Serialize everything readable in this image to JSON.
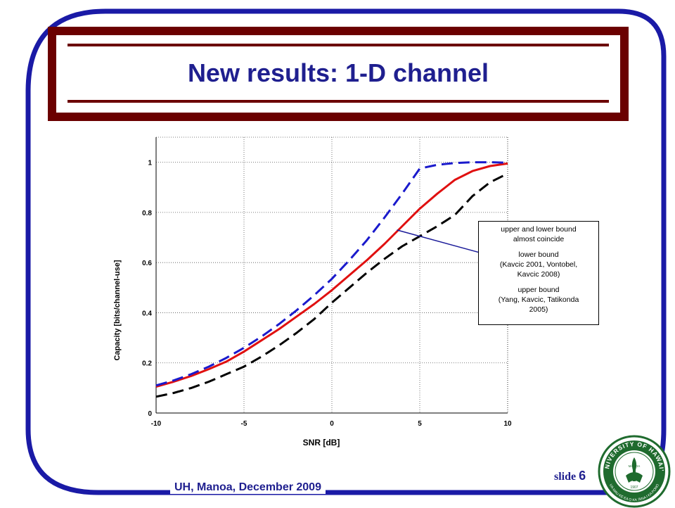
{
  "slide": {
    "title": "New results: 1-D channel",
    "footer": "UH, Manoa, December 2009",
    "slide_label": "slide",
    "slide_number": "6",
    "frame_color": "#1a1aa6",
    "band_color": "#6b0000"
  },
  "annotation": {
    "lines": [
      [
        "upper and lower bound",
        "almost coincide"
      ],
      [
        "lower bound",
        "(Kavcic 2001, Vontobel,",
        "Kavcic 2008)"
      ],
      [
        "upper bound",
        "(Yang, Kavcic, Tatikonda",
        "2005)"
      ]
    ]
  },
  "seal": {
    "text_top": "UNIVERSITY OF HAWAI'I",
    "text_inner": "MĀNOA",
    "year": "1907",
    "color": "#1f6b2e"
  },
  "chart_data": {
    "type": "line",
    "xlabel": "SNR [dB]",
    "ylabel": "Capacity [bits/channel-use]",
    "xlim": [
      -10,
      10
    ],
    "ylim": [
      0,
      1.1
    ],
    "xticks": [
      "-10",
      "-5",
      "0",
      "5",
      "10"
    ],
    "yticks": [
      "0",
      "0.2",
      "0.4",
      "0.6",
      "0.8",
      "1"
    ],
    "grid": true,
    "series": [
      {
        "color": "#e01010",
        "dash": "solid",
        "x": [
          -10,
          -9,
          -8,
          -7,
          -6,
          -5,
          -4,
          -3,
          -2,
          -1,
          0,
          1,
          2,
          3,
          4,
          5,
          6,
          7,
          8,
          9,
          10
        ],
        "y": [
          0.105,
          0.125,
          0.148,
          0.175,
          0.205,
          0.245,
          0.29,
          0.335,
          0.385,
          0.435,
          0.49,
          0.55,
          0.61,
          0.675,
          0.745,
          0.815,
          0.875,
          0.93,
          0.965,
          0.985,
          0.995
        ]
      },
      {
        "color": "#1a1acc",
        "dash": "dashed",
        "x": [
          -10,
          -9,
          -8,
          -7,
          -6,
          -5,
          -4,
          -3,
          -2,
          -1,
          0,
          1,
          2,
          3,
          4,
          5,
          6,
          7,
          8,
          9,
          10
        ],
        "y": [
          0.11,
          0.13,
          0.155,
          0.185,
          0.22,
          0.26,
          0.305,
          0.355,
          0.41,
          0.47,
          0.535,
          0.61,
          0.69,
          0.78,
          0.875,
          0.975,
          0.99,
          0.997,
          1.0,
          1.0,
          0.998
        ]
      },
      {
        "color": "#000000",
        "dash": "dashed",
        "x": [
          -10,
          -9,
          -8,
          -7,
          -6,
          -5,
          -4,
          -3,
          -2,
          -1,
          0,
          1,
          2,
          3,
          4,
          5,
          6,
          7,
          8,
          9,
          10
        ],
        "y": [
          0.065,
          0.08,
          0.1,
          0.125,
          0.155,
          0.185,
          0.225,
          0.27,
          0.32,
          0.375,
          0.44,
          0.5,
          0.56,
          0.615,
          0.665,
          0.705,
          0.745,
          0.79,
          0.865,
          0.92,
          0.955
        ]
      }
    ],
    "pointer": {
      "from": [
        3.7,
        0.73
      ],
      "to": [
        8.4,
        0.64
      ]
    }
  }
}
